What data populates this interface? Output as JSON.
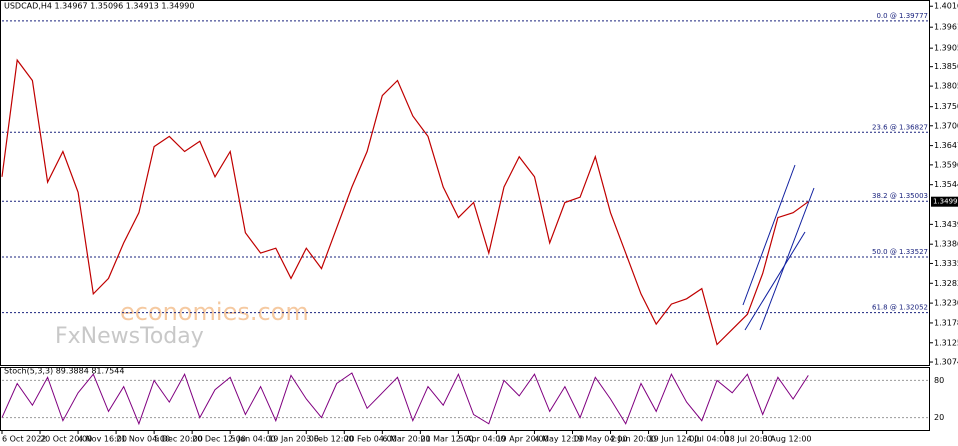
{
  "chart_data": {
    "type": "line",
    "title": "USDCAD,H4  1.34967 1.35096 1.34913 1.34990",
    "watermark": [
      "economies.com",
      "FxNewsToday"
    ],
    "x": [
      0,
      0.4,
      0.8,
      1.2,
      1.6,
      2,
      2.4,
      2.8,
      3.2,
      3.6,
      4,
      4.4,
      4.8,
      5.2,
      5.6,
      6,
      6.4,
      6.8,
      7.2,
      7.6,
      8,
      8.4,
      8.8,
      9.2,
      9.6,
      10,
      10.4,
      10.8,
      11.2,
      11.6,
      12,
      12.4,
      12.8,
      13.2,
      13.6,
      14,
      14.4,
      14.8,
      15.2,
      15.6,
      16,
      16.4,
      16.8,
      17.2,
      17.6,
      18,
      18.4,
      18.8,
      19.2,
      19.6,
      20,
      20.4,
      20.8,
      21.2
    ],
    "xlim": [
      0,
      24.4
    ],
    "xticks": [
      {
        "value": 0,
        "label": "6 Oct 2022"
      },
      {
        "value": 1,
        "label": "20 Oct 20:00"
      },
      {
        "value": 2,
        "label": "4 Nov 16:00"
      },
      {
        "value": 3,
        "label": "21 Nov 04:00"
      },
      {
        "value": 4,
        "label": "5 Dec 20:00"
      },
      {
        "value": 5,
        "label": "20 Dec 12:00"
      },
      {
        "value": 6,
        "label": "5 Jan 04:00"
      },
      {
        "value": 7,
        "label": "19 Jan 20:00"
      },
      {
        "value": 8,
        "label": "3 Feb 12:00"
      },
      {
        "value": 9,
        "label": "20 Feb 04:00"
      },
      {
        "value": 10,
        "label": "6 Mar 20:00"
      },
      {
        "value": 11,
        "label": "21 Mar 12:00"
      },
      {
        "value": 12,
        "label": "5 Apr 04:00"
      },
      {
        "value": 13,
        "label": "19 Apr 20:00"
      },
      {
        "value": 14,
        "label": "4 May 12:00"
      },
      {
        "value": 15,
        "label": "19 May 04:00"
      },
      {
        "value": 16,
        "label": "2 Jun 20:00"
      },
      {
        "value": 17,
        "label": "19 Jun 12:00"
      },
      {
        "value": 18,
        "label": "4 Jul 04:00"
      },
      {
        "value": 19,
        "label": "18 Jul 20:00"
      },
      {
        "value": 20,
        "label": "3 Aug 12:00"
      }
    ],
    "series": [
      {
        "name": "USDCAD",
        "color": "#c00000",
        "values": [
          1.3565,
          1.3874,
          1.382,
          1.3551,
          1.3632,
          1.3524,
          1.3255,
          1.3296,
          1.339,
          1.347,
          1.3645,
          1.3672,
          1.3632,
          1.3659,
          1.3565,
          1.3632,
          1.3417,
          1.3363,
          1.3376,
          1.3296,
          1.3376,
          1.3322,
          1.343,
          1.3538,
          1.3632,
          1.378,
          1.382,
          1.3726,
          1.3672,
          1.3538,
          1.3457,
          1.3497,
          1.3363,
          1.3538,
          1.3618,
          1.3565,
          1.339,
          1.3497,
          1.3511,
          1.3618,
          1.347,
          1.3363,
          1.3255,
          1.3175,
          1.3228,
          1.3242,
          1.3269,
          1.3121,
          1.3161,
          1.3201,
          1.3309,
          1.3457,
          1.347,
          1.3499
        ]
      }
    ],
    "ylim": [
      1.3064,
      1.4033
    ],
    "yticks": [
      {
        "value": 1.40165,
        "label": "1.40165"
      },
      {
        "value": 1.3961,
        "label": "1.39610"
      },
      {
        "value": 1.39055,
        "label": "1.39055"
      },
      {
        "value": 1.38565,
        "label": "1.38565"
      },
      {
        "value": 1.3805,
        "label": "1.38050"
      },
      {
        "value": 1.37505,
        "label": "1.37505"
      },
      {
        "value": 1.37,
        "label": "1.37000"
      },
      {
        "value": 1.36475,
        "label": "1.36475"
      },
      {
        "value": 1.35965,
        "label": "1.35965"
      },
      {
        "value": 1.3544,
        "label": "1.35440"
      },
      {
        "value": 1.3439,
        "label": "1.34390"
      },
      {
        "value": 1.33865,
        "label": "1.33865"
      },
      {
        "value": 1.33355,
        "label": "1.33355"
      },
      {
        "value": 1.3283,
        "label": "1.32830"
      },
      {
        "value": 1.32305,
        "label": "1.32305"
      },
      {
        "value": 1.3178,
        "label": "1.31780"
      },
      {
        "value": 1.31255,
        "label": "1.31255"
      },
      {
        "value": 1.30745,
        "label": "1.30745"
      }
    ],
    "last_price": {
      "value": 1.3499,
      "label": "1.34990"
    },
    "fib_levels": [
      {
        "value": 1.39777,
        "label": "0.0 @ 1.39777"
      },
      {
        "value": 1.36827,
        "label": "23.6 @ 1.36827"
      },
      {
        "value": 1.35003,
        "label": "38.2 @ 1.35003"
      },
      {
        "value": 1.33527,
        "label": "50.0 @ 1.33527"
      },
      {
        "value": 1.32052,
        "label": "61.8 @ 1.32052"
      }
    ],
    "stoch": {
      "title": "Stoch(5,3,3) 89.3884 81.7544",
      "color": "#800080",
      "values": [
        20,
        75,
        40,
        85,
        15,
        60,
        90,
        30,
        70,
        10,
        80,
        45,
        90,
        20,
        65,
        85,
        25,
        70,
        15,
        88,
        50,
        20,
        75,
        92,
        35,
        60,
        85,
        15,
        70,
        40,
        90,
        25,
        10,
        80,
        55,
        90,
        30,
        70,
        20,
        85,
        50,
        10,
        75,
        30,
        90,
        45,
        15,
        80,
        60,
        90,
        25,
        85,
        50,
        88
      ],
      "ylim": [
        0,
        100
      ],
      "yticks": [
        80,
        20
      ]
    }
  }
}
